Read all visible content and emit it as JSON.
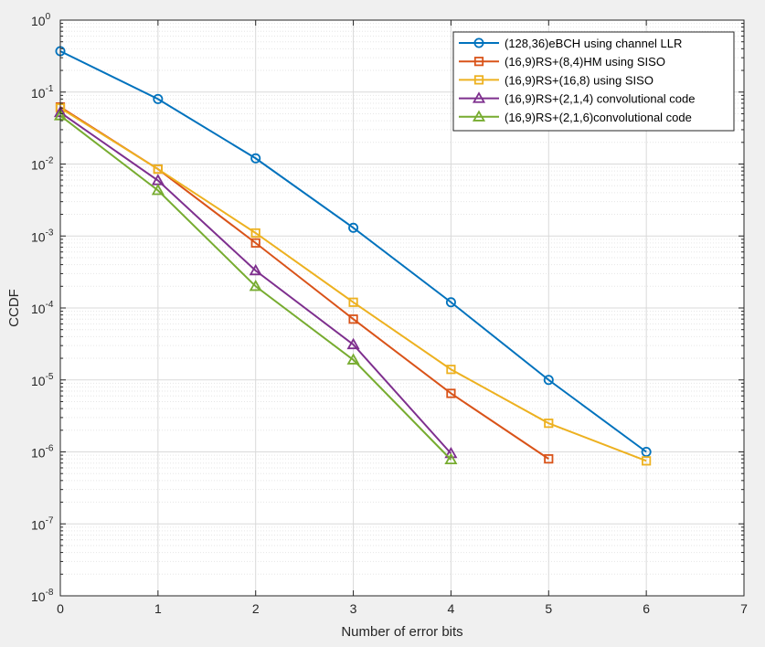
{
  "chart_data": {
    "type": "line",
    "xlabel": "Number of error bits",
    "ylabel": "CCDF",
    "xlim": [
      0,
      7
    ],
    "ylim": [
      1e-08,
      1
    ],
    "yscale": "log",
    "grid": true,
    "minor_grid": true,
    "legend_position": "top-right",
    "x_ticks": [
      "0",
      "1",
      "2",
      "3",
      "4",
      "5",
      "6",
      "7"
    ],
    "y_tick_exponents": [
      "0",
      "-1",
      "-2",
      "-3",
      "-4",
      "-5",
      "-6",
      "-7",
      "-8"
    ],
    "series": [
      {
        "name": "(128,36)eBCH using channel LLR",
        "color": "#0072BD",
        "marker": "circle",
        "x": [
          0,
          1,
          2,
          3,
          4,
          5,
          6
        ],
        "y": [
          0.37,
          0.08,
          0.012,
          0.0013,
          0.00012,
          1e-05,
          1e-06
        ]
      },
      {
        "name": "(16,9)RS+(8,4)HM using SISO",
        "color": "#D95319",
        "marker": "square",
        "x": [
          0,
          1,
          2,
          3,
          4,
          5
        ],
        "y": [
          0.062,
          0.0085,
          0.0008,
          7e-05,
          6.5e-06,
          8e-07
        ]
      },
      {
        "name": "(16,9)RS+(16,8) using SISO",
        "color": "#EDB120",
        "marker": "square",
        "x": [
          0,
          1,
          2,
          3,
          4,
          5,
          6
        ],
        "y": [
          0.06,
          0.0085,
          0.0011,
          0.00012,
          1.4e-05,
          2.5e-06,
          7.5e-07
        ]
      },
      {
        "name": "(16,9)RS+(2,1,4) convolutional code",
        "color": "#7E2F8E",
        "marker": "triangle",
        "x": [
          0,
          1,
          2,
          3,
          4
        ],
        "y": [
          0.052,
          0.0059,
          0.00033,
          3.1e-05,
          9.5e-07
        ]
      },
      {
        "name": "(16,9)RS+(2,1,6)convolutional code",
        "color": "#77AC30",
        "marker": "triangle",
        "x": [
          0,
          1,
          2,
          3,
          4
        ],
        "y": [
          0.047,
          0.0043,
          0.0002,
          1.9e-05,
          7.8e-07
        ]
      }
    ]
  }
}
